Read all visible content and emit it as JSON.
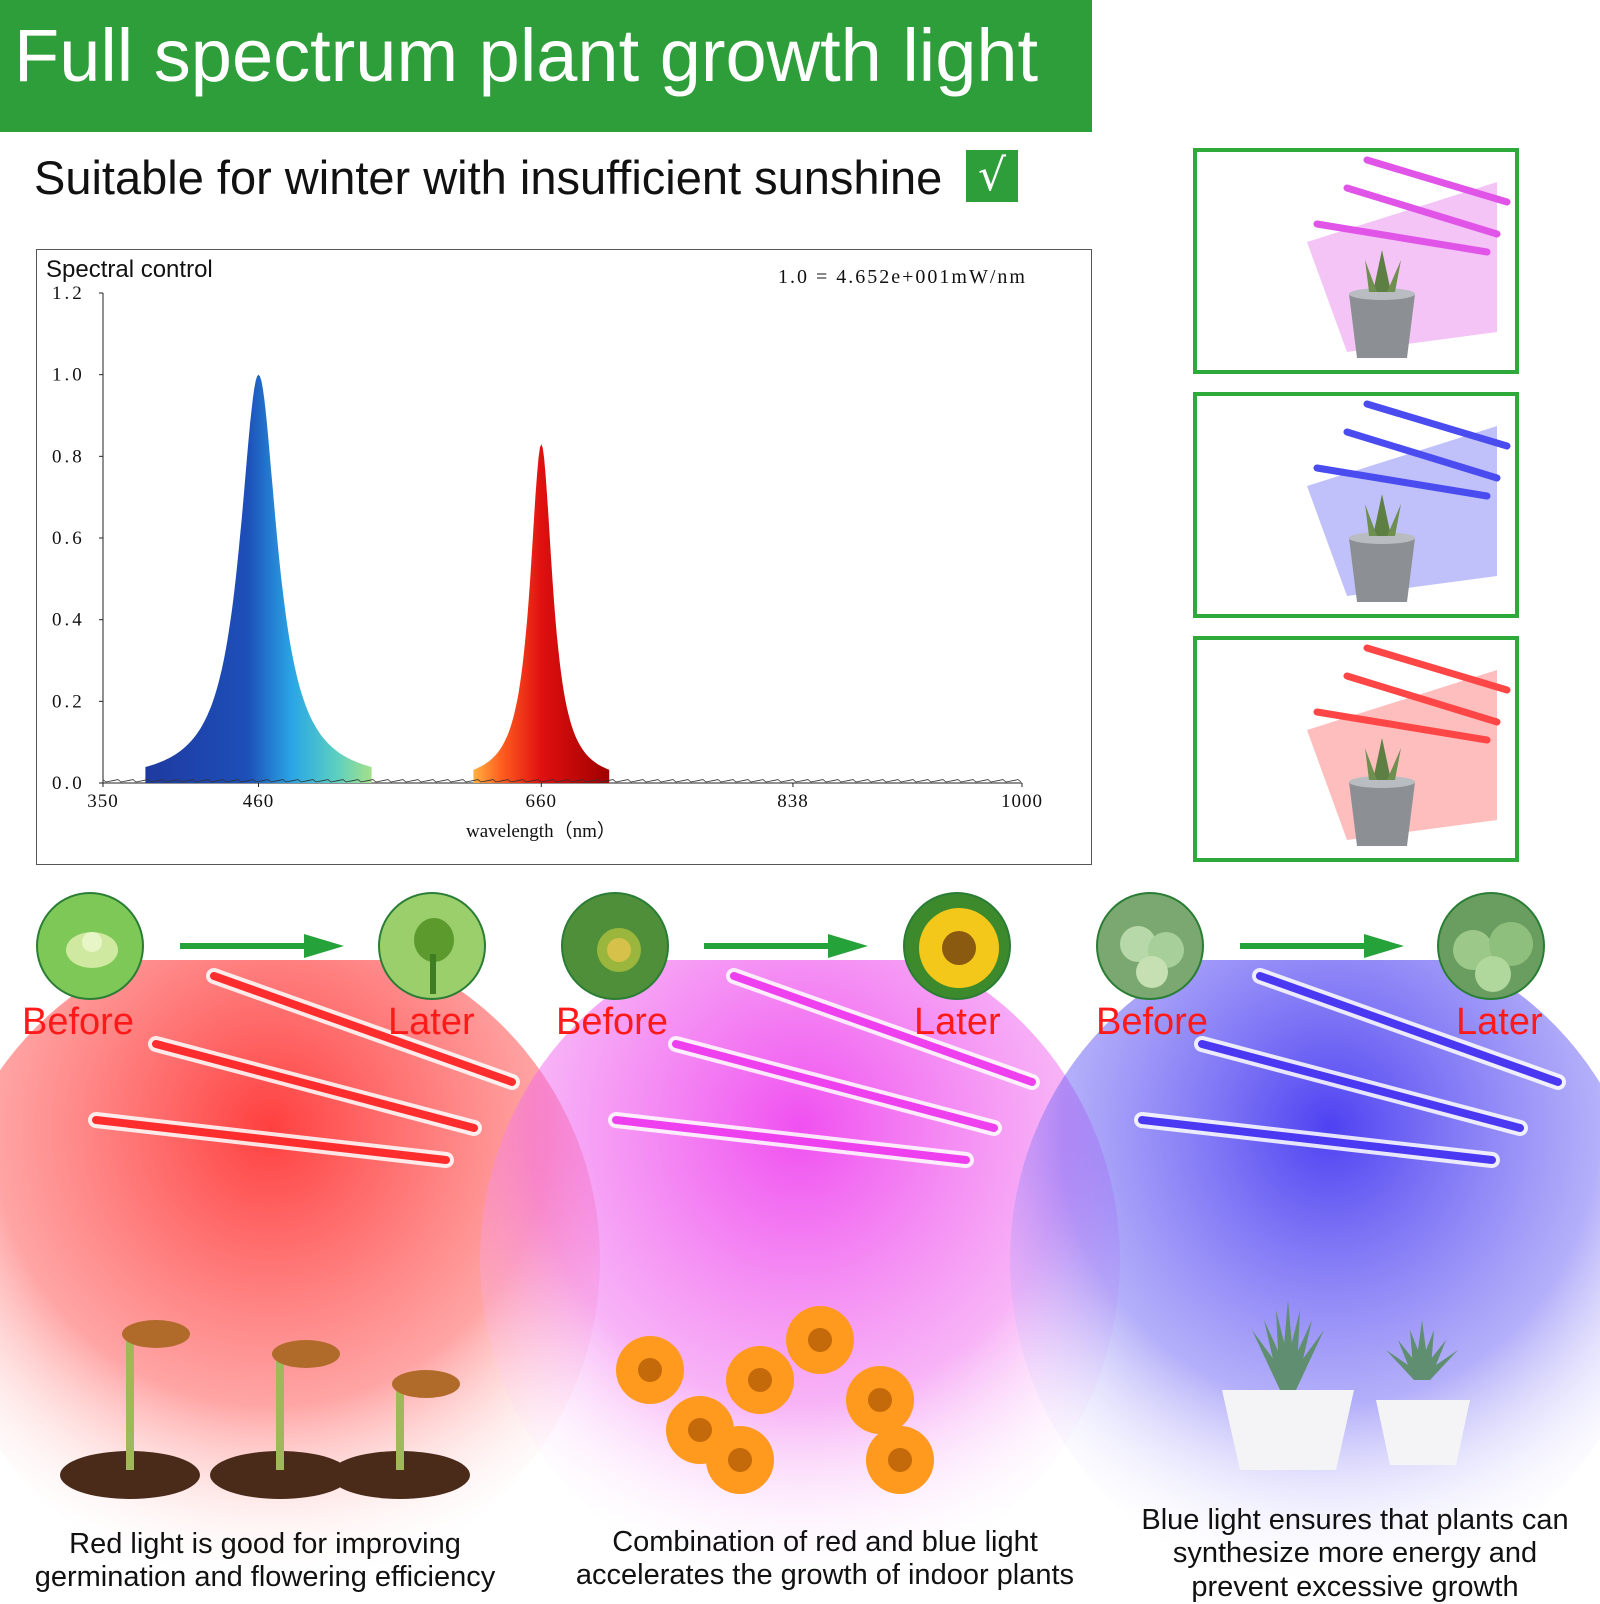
{
  "header": {
    "title": "Full spectrum plant growth light",
    "subtitle": "Suitable for winter with insufficient sunshine",
    "check_icon": "√"
  },
  "colors": {
    "banner_green": "#2e9e3a",
    "frame_green": "#2eaa3b",
    "label_red": "#ff1a1a",
    "red_light": "#ff3030",
    "mixed_light": "#ee44dd",
    "blue_light": "#4a3cf0"
  },
  "chart_data": {
    "type": "line",
    "title": "Spectral control",
    "annotation": "1.0 = 4.652e+001mW/nm",
    "xlabel": "wavelength（nm）",
    "ylabel": "",
    "xlim": [
      350,
      1000
    ],
    "ylim": [
      0.0,
      1.2
    ],
    "x_ticks": [
      "350",
      "460",
      "660",
      "838",
      "1000"
    ],
    "y_ticks": [
      "0.0",
      "0.2",
      "0.4",
      "0.6",
      "0.8",
      "1.0",
      "1.2"
    ],
    "series": [
      {
        "peak_wavelength": 460,
        "peak_value": 1.0,
        "half_width": 25,
        "color_range": [
          "#1f3d9e",
          "#2bb1e8",
          "#6fce7a"
        ]
      },
      {
        "peak_wavelength": 660,
        "peak_value": 0.83,
        "half_width": 15,
        "color_range": [
          "#ff5a1e",
          "#e01414",
          "#b00000"
        ]
      }
    ],
    "grid": false,
    "legend": "none"
  },
  "thumbnails": [
    {
      "light": "pink",
      "color": "#e055e8"
    },
    {
      "light": "blue",
      "color": "#4a4cf0"
    },
    {
      "light": "red",
      "color": "#ff4646"
    }
  ],
  "panels": [
    {
      "before_label": "Before",
      "later_label": "Later",
      "light_color": "#ff2d2d",
      "caption_line1": "Red light is good for improving",
      "caption_line2": "germination and flowering efficiency"
    },
    {
      "before_label": "Before",
      "later_label": "Later",
      "light_color": "#ee40ee",
      "caption_line1": "Combination of red and blue light",
      "caption_line2": "accelerates the growth of indoor plants"
    },
    {
      "before_label": "Before",
      "later_label": "Later",
      "light_color": "#4a38f2",
      "caption_line1": "Blue light ensures that plants can",
      "caption_line2": "synthesize more energy and",
      "caption_line3": "prevent excessive growth"
    }
  ]
}
